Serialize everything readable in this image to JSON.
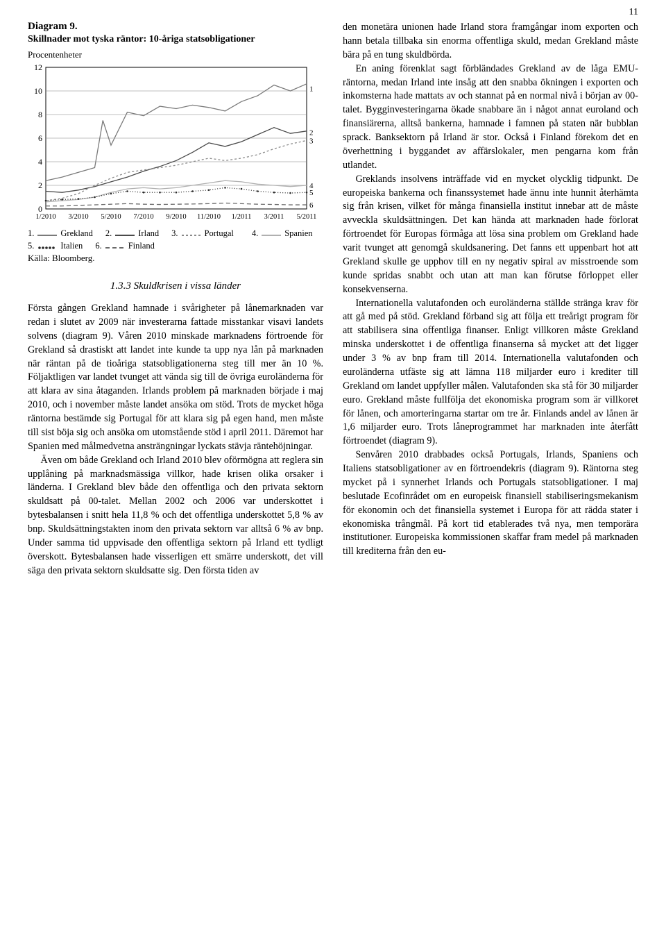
{
  "page_number": "11",
  "diagram": {
    "label": "Diagram 9.",
    "title": "Skillnader mot tyska räntor: 10-åriga statsobligationer",
    "ylabel": "Procentenheter",
    "type": "line",
    "xlim": [
      "1/2010",
      "5/2011"
    ],
    "ylim": [
      0,
      12
    ],
    "ytick_step": 2,
    "yticks": [
      0,
      2,
      4,
      6,
      8,
      10,
      12
    ],
    "xticks": [
      "1/2010",
      "3/2010",
      "5/2010",
      "7/2010",
      "9/2010",
      "11/2010",
      "1/2011",
      "3/2011",
      "5/2011"
    ],
    "grid_color": "#808080",
    "background_color": "#ffffff",
    "line_width": 1.3,
    "series": [
      {
        "n": "1",
        "name": "Grekland",
        "color": "#7a7a7a",
        "dash": "",
        "end_y": 10.2,
        "pts": [
          [
            0,
            2.4
          ],
          [
            1,
            2.7
          ],
          [
            2,
            3.1
          ],
          [
            3,
            3.5
          ],
          [
            3.5,
            7.5
          ],
          [
            4,
            5.4
          ],
          [
            5,
            8.2
          ],
          [
            6,
            7.9
          ],
          [
            7,
            8.7
          ],
          [
            8,
            8.5
          ],
          [
            9,
            8.8
          ],
          [
            10,
            8.6
          ],
          [
            11,
            8.3
          ],
          [
            12,
            9.1
          ],
          [
            13,
            9.6
          ],
          [
            14,
            10.5
          ],
          [
            15,
            10.0
          ],
          [
            16,
            10.6
          ]
        ]
      },
      {
        "n": "2",
        "name": "Irland",
        "color": "#4a4a4a",
        "dash": "",
        "end_y": 6.5,
        "pts": [
          [
            0,
            1.5
          ],
          [
            1,
            1.4
          ],
          [
            2,
            1.6
          ],
          [
            3,
            1.9
          ],
          [
            4,
            2.3
          ],
          [
            5,
            2.7
          ],
          [
            6,
            3.2
          ],
          [
            7,
            3.6
          ],
          [
            8,
            4.1
          ],
          [
            9,
            4.8
          ],
          [
            10,
            5.6
          ],
          [
            11,
            5.3
          ],
          [
            12,
            5.7
          ],
          [
            13,
            6.3
          ],
          [
            14,
            6.9
          ],
          [
            15,
            6.4
          ],
          [
            16,
            6.6
          ]
        ]
      },
      {
        "n": "3",
        "name": "Portugal",
        "color": "#8a8a8a",
        "dash": "3,3",
        "end_y": 5.8,
        "pts": [
          [
            0,
            0.7
          ],
          [
            1,
            0.9
          ],
          [
            2,
            1.3
          ],
          [
            3,
            2.0
          ],
          [
            4,
            2.6
          ],
          [
            5,
            3.1
          ],
          [
            6,
            3.3
          ],
          [
            7,
            3.5
          ],
          [
            8,
            3.7
          ],
          [
            9,
            4.0
          ],
          [
            10,
            4.3
          ],
          [
            11,
            4.1
          ],
          [
            12,
            4.3
          ],
          [
            13,
            4.6
          ],
          [
            14,
            5.1
          ],
          [
            15,
            5.5
          ],
          [
            16,
            5.8
          ]
        ]
      },
      {
        "n": "4",
        "name": "Spanien",
        "color": "#b0b0b0",
        "dash": "",
        "end_y": 2.0,
        "pts": [
          [
            0,
            0.6
          ],
          [
            1,
            0.7
          ],
          [
            2,
            0.8
          ],
          [
            3,
            1.0
          ],
          [
            4,
            1.4
          ],
          [
            5,
            1.7
          ],
          [
            6,
            1.8
          ],
          [
            7,
            1.7
          ],
          [
            8,
            1.8
          ],
          [
            9,
            2.0
          ],
          [
            10,
            2.2
          ],
          [
            11,
            2.4
          ],
          [
            12,
            2.3
          ],
          [
            13,
            2.1
          ],
          [
            14,
            2.0
          ],
          [
            15,
            1.9
          ],
          [
            16,
            2.0
          ]
        ]
      },
      {
        "n": "5",
        "name": "Italien",
        "color": "#2a2a2a",
        "dash": "1,2.5",
        "dots": true,
        "end_y": 1.4,
        "pts": [
          [
            0,
            0.7
          ],
          [
            1,
            0.8
          ],
          [
            2,
            0.85
          ],
          [
            3,
            1.0
          ],
          [
            4,
            1.3
          ],
          [
            5,
            1.5
          ],
          [
            6,
            1.4
          ],
          [
            7,
            1.4
          ],
          [
            8,
            1.4
          ],
          [
            9,
            1.5
          ],
          [
            10,
            1.6
          ],
          [
            11,
            1.8
          ],
          [
            12,
            1.7
          ],
          [
            13,
            1.5
          ],
          [
            14,
            1.4
          ],
          [
            15,
            1.35
          ],
          [
            16,
            1.4
          ]
        ]
      },
      {
        "n": "6",
        "name": "Finland",
        "color": "#6a6a6a",
        "dash": "6,4",
        "end_y": 0.35,
        "pts": [
          [
            0,
            0.25
          ],
          [
            1,
            0.25
          ],
          [
            2,
            0.3
          ],
          [
            3,
            0.35
          ],
          [
            4,
            0.4
          ],
          [
            5,
            0.45
          ],
          [
            6,
            0.4
          ],
          [
            7,
            0.38
          ],
          [
            8,
            0.4
          ],
          [
            9,
            0.42
          ],
          [
            10,
            0.45
          ],
          [
            11,
            0.5
          ],
          [
            12,
            0.45
          ],
          [
            13,
            0.4
          ],
          [
            14,
            0.38
          ],
          [
            15,
            0.35
          ],
          [
            16,
            0.35
          ]
        ]
      }
    ],
    "legend_source": "Källa: Bloomberg."
  },
  "section_heading": "1.3.3 Skuldkrisen i vissa länder",
  "left_paragraphs": [
    "Första gången Grekland hamnade i svårigheter på lånemarknaden var redan i slutet av 2009 när investerarna fattade misstankar visavi landets solvens (diagram 9). Våren 2010 minskade marknadens förtroende för Grekland så drastiskt att landet inte kunde ta upp nya lån på marknaden när räntan på de tioåriga statsobligationerna steg till mer än 10 %. Följaktligen var landet tvunget att vända sig till de övriga euroländerna för att klara av sina åtaganden. Irlands problem på marknaden började i maj 2010, och i november måste landet ansöka om stöd. Trots de mycket höga räntorna bestämde sig Portugal för att klara sig på egen hand, men måste till sist böja sig och ansöka om utomstående stöd i april 2011. Däremot har Spanien med målmedvetna ansträngningar lyckats stävja räntehöjningar.",
    "Även om både Grekland och Irland 2010 blev oförmögna att reglera sin upplåning på marknadsmässiga villkor, hade krisen olika orsaker i länderna. I Grekland blev både den offentliga och den privata sektorn skuldsatt på 00-talet. Mellan 2002 och 2006 var underskottet i bytesbalansen i snitt hela 11,8 % och det offentliga underskottet 5,8 % av bnp. Skuldsättningstakten inom den privata sektorn var alltså 6 % av bnp. Under samma tid uppvisade den offentliga sektorn på Irland ett tydligt överskott. Bytesbalansen hade visserligen ett smärre underskott, det vill säga den privata sektorn skuldsatte sig. Den första tiden av"
  ],
  "right_paragraphs": [
    "den monetära unionen hade Irland stora framgångar inom exporten och hann betala tillbaka sin enorma offentliga skuld, medan Grekland måste bära på en tung skuldbörda.",
    "En aning förenklat sagt förbländades Grekland av de låga EMU-räntorna, medan Irland inte insåg att den snabba ökningen i exporten och inkomsterna hade mattats av och stannat på en normal nivå i början av 00-talet. Bygginvesteringarna ökade snabbare än i något annat euroland och finansiärerna, alltså bankerna, hamnade i famnen på staten när bubblan sprack. Banksektorn på Irland är stor. Också i Finland förekom det en överhettning i byggandet av affärslokaler, men pengarna kom från utlandet.",
    "Greklands insolvens inträffade vid en mycket olycklig tidpunkt. De europeiska bankerna och finanssystemet hade ännu inte hunnit återhämta sig från krisen, vilket för många finansiella institut innebar att de måste avveckla skuldsättningen. Det kan hända att marknaden hade förlorat förtroendet för Europas förmåga att lösa sina problem om Grekland hade varit tvunget att genomgå skuldsanering. Det fanns ett uppenbart hot att Grekland skulle ge upphov till en ny negativ spiral av misstroende som kunde spridas snabbt och utan att man kan förutse förloppet eller konsekvenserna.",
    "Internationella valutafonden och euroländerna ställde stränga krav för att gå med på stöd. Grekland förband sig att följa ett treårigt program för att stabilisera sina offentliga finanser. Enligt villkoren måste Grekland minska underskottet i de offentliga finanserna så mycket att det ligger under 3 % av bnp fram till 2014. Internationella valutafonden och euroländerna utfäste sig att lämna 118 miljarder euro i krediter till Grekland om landet uppfyller målen. Valutafonden ska stå för 30 miljarder euro. Grekland måste fullfölja det ekonomiska program som är villkoret för lånen, och amorteringarna startar om tre år. Finlands andel av lånen är 1,6 miljarder euro. Trots låneprogrammet har marknaden inte återfått förtroendet (diagram 9).",
    "Senvåren 2010 drabbades också Portugals, Irlands, Spaniens och Italiens statsobligationer av en förtroendekris (diagram 9). Räntorna steg mycket på i synnerhet Irlands och Portugals statsobligationer. I maj beslutade Ecofinrådet om en europeisk finansiell stabiliseringsmekanism för ekonomin och det finansiella systemet i Europa för att rädda stater i ekonomiska trångmål. På kort tid etablerades två nya, men temporära institutioner. Europeiska kommissionen skaffar fram medel på marknaden till krediterna från den eu-"
  ]
}
